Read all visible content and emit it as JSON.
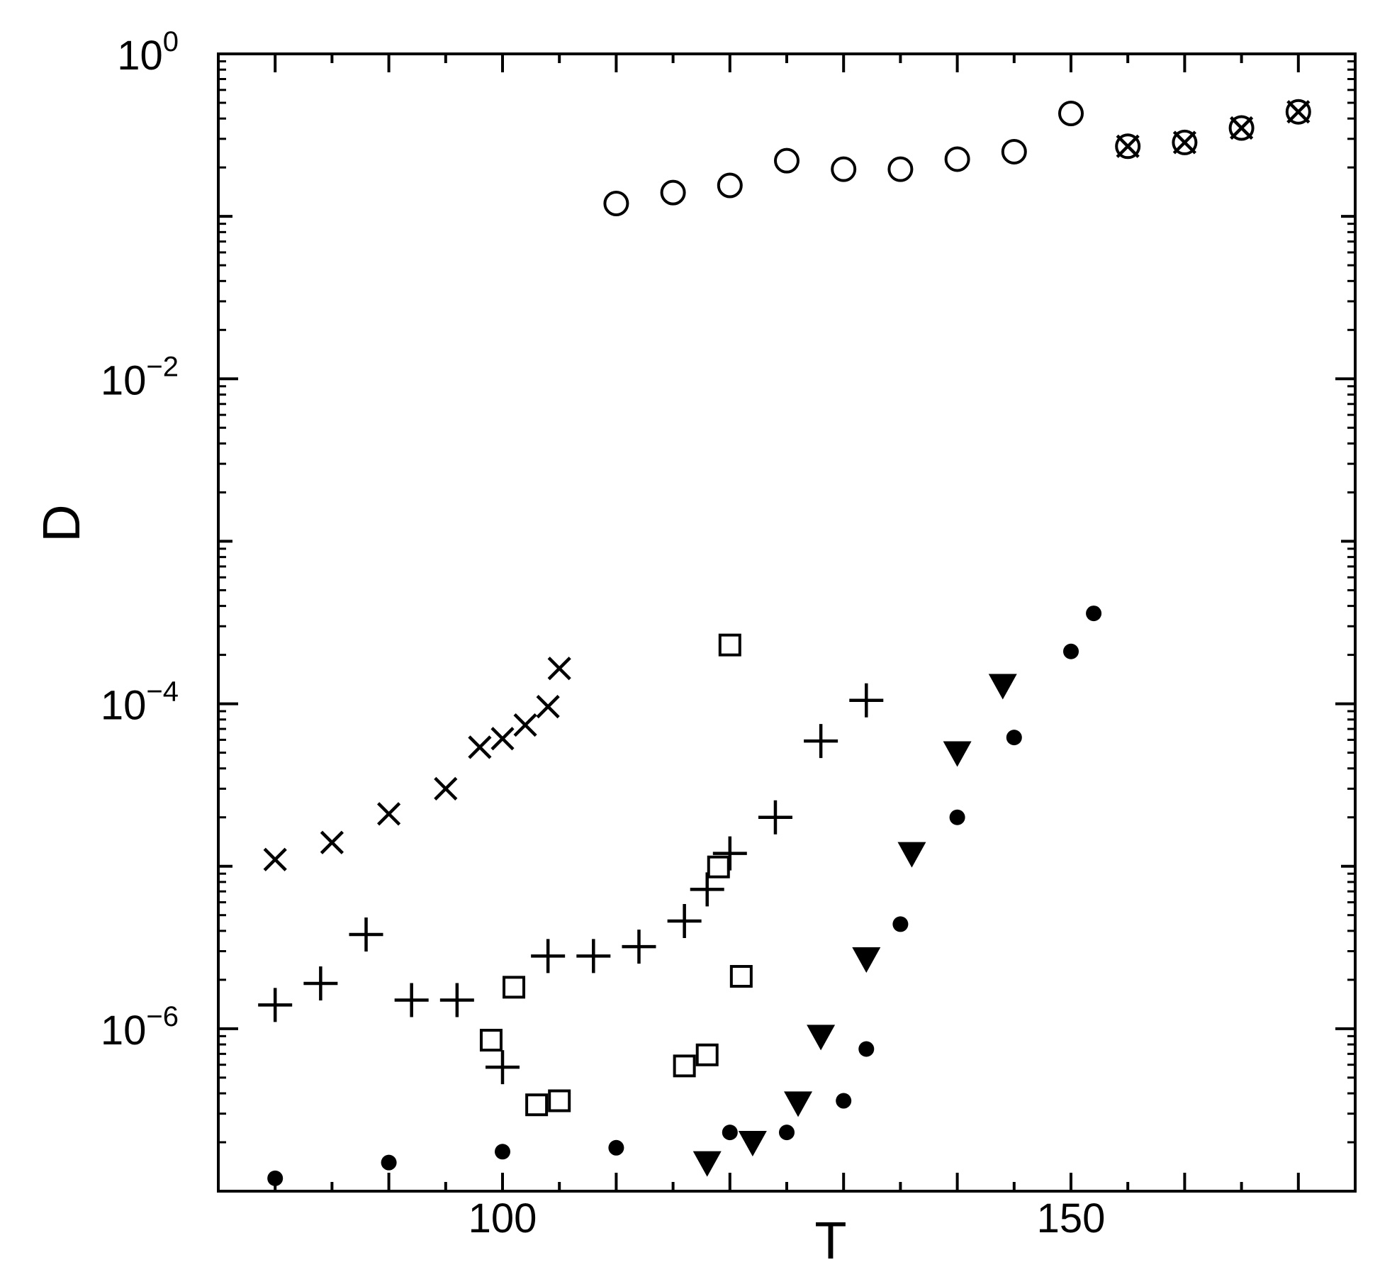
{
  "chart_data": {
    "type": "scatter",
    "xlabel": "T",
    "ylabel": "D",
    "xlim": [
      75,
      175
    ],
    "ylim_log10": [
      -7,
      0
    ],
    "yscale": "log",
    "grid": false,
    "x_ticks": [
      {
        "value": 100,
        "label": "100"
      },
      {
        "value": 150,
        "label": "150"
      }
    ],
    "y_ticks": [
      {
        "value": 0,
        "base": "10",
        "exp": "0"
      },
      {
        "value": -2,
        "base": "10",
        "exp": "−2"
      },
      {
        "value": -4,
        "base": "10",
        "exp": "−4"
      },
      {
        "value": -6,
        "base": "10",
        "exp": "−6"
      }
    ],
    "series": [
      {
        "marker": "open-circle",
        "points": [
          [
            110,
            0.12
          ],
          [
            115,
            0.14
          ],
          [
            120,
            0.155
          ],
          [
            125,
            0.22
          ],
          [
            130,
            0.195
          ],
          [
            135,
            0.195
          ],
          [
            140,
            0.225
          ],
          [
            145,
            0.25
          ],
          [
            150,
            0.43
          ],
          [
            155,
            0.27
          ],
          [
            160,
            0.285
          ],
          [
            165,
            0.35
          ],
          [
            170,
            0.44
          ]
        ]
      },
      {
        "marker": "x",
        "points": [
          [
            80,
            1.1e-05
          ],
          [
            85,
            1.4e-05
          ],
          [
            90,
            2.1e-05
          ],
          [
            95,
            3e-05
          ],
          [
            98,
            5.4e-05
          ],
          [
            100,
            6.1e-05
          ],
          [
            102,
            7.4e-05
          ],
          [
            104,
            9.6e-05
          ],
          [
            105,
            0.000165
          ],
          [
            155,
            0.27
          ],
          [
            160,
            0.285
          ],
          [
            165,
            0.35
          ],
          [
            170,
            0.44
          ]
        ]
      },
      {
        "marker": "plus",
        "points": [
          [
            80,
            1.4e-06
          ],
          [
            84,
            1.9e-06
          ],
          [
            88,
            3.8e-06
          ],
          [
            92,
            1.5e-06
          ],
          [
            96,
            1.5e-06
          ],
          [
            100,
            5.8e-07
          ],
          [
            104,
            2.8e-06
          ],
          [
            108,
            2.8e-06
          ],
          [
            112,
            3.2e-06
          ],
          [
            116,
            4.6e-06
          ],
          [
            118,
            7.2e-06
          ],
          [
            120,
            1.2e-05
          ],
          [
            124,
            2e-05
          ],
          [
            128,
            5.9e-05
          ],
          [
            132,
            0.000105
          ]
        ]
      },
      {
        "marker": "open-square",
        "points": [
          [
            99,
            8.5e-07
          ],
          [
            101,
            1.8e-06
          ],
          [
            103,
            3.4e-07
          ],
          [
            105,
            3.6e-07
          ],
          [
            116,
            5.9e-07
          ],
          [
            118,
            6.9e-07
          ],
          [
            119,
            9.9e-06
          ],
          [
            121,
            2.1e-06
          ],
          [
            120,
            0.00023
          ]
        ]
      },
      {
        "marker": "filled-triangle-down",
        "points": [
          [
            118,
            1.5e-07
          ],
          [
            122,
            2e-07
          ],
          [
            126,
            3.5e-07
          ],
          [
            128,
            9e-07
          ],
          [
            132,
            2.7e-06
          ],
          [
            136,
            1.2e-05
          ],
          [
            140,
            5e-05
          ],
          [
            144,
            0.00013
          ]
        ]
      },
      {
        "marker": "filled-circle",
        "points": [
          [
            80,
            1.2e-07
          ],
          [
            90,
            1.5e-07
          ],
          [
            100,
            1.75e-07
          ],
          [
            110,
            1.85e-07
          ],
          [
            120,
            2.3e-07
          ],
          [
            125,
            2.3e-07
          ],
          [
            130,
            3.6e-07
          ],
          [
            132,
            7.5e-07
          ],
          [
            135,
            4.4e-06
          ],
          [
            140,
            2e-05
          ],
          [
            145,
            6.2e-05
          ],
          [
            150,
            0.00021
          ],
          [
            152,
            0.00036
          ]
        ]
      }
    ]
  }
}
